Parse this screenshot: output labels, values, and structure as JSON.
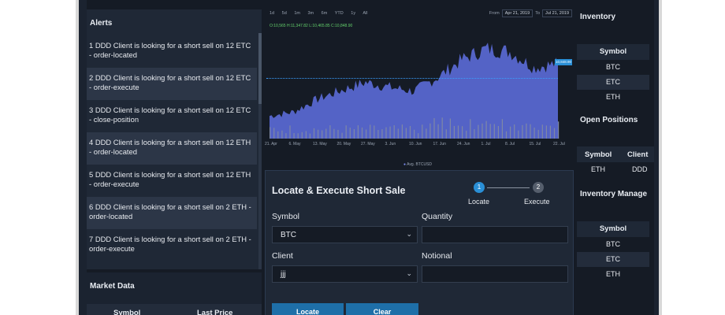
{
  "alerts": {
    "title": "Alerts",
    "items": [
      "1 DDD Client is looking for a short sell on 12 ETC - order-located",
      "2 DDD Client is looking for a short sell on 12 ETC - order-execute",
      "3 DDD Client is looking for a short sell on 12 ETC - close-position",
      "4 DDD Client is looking for a short sell on 12 ETH - order-located",
      "5 DDD Client is looking for a short sell on 12 ETH - order-execute",
      "6 DDD Client is looking for a short sell on 2 ETH - order-located",
      "7 DDD Client is looking for a short sell on 2 ETH - order-execute"
    ]
  },
  "market_data": {
    "title": "Market Data",
    "columns": [
      "Symbol",
      "Last Price"
    ]
  },
  "chart": {
    "ranges": [
      "1d",
      "5d",
      "1m",
      "3m",
      "6m",
      "YTD",
      "1y",
      "All"
    ],
    "from_label": "From",
    "from_date": "Apr 21, 2019",
    "to_label": "To",
    "to_date": "Jul 21, 2019",
    "ohlc": "O:10,565 H:11,347.82 L:10,465.85 C:10,848.90",
    "price_tag": "10,848.90",
    "x_ticks": [
      "21. Apr",
      "6. May",
      "13. May",
      "20. May",
      "27. May",
      "3. Jun",
      "10. Jun",
      "17. Jun",
      "24. Jun",
      "1. Jul",
      "8. Jul",
      "15. Jul",
      "22. Jul"
    ],
    "legend": "Avg. BTCUSD",
    "accent": "#5b6bd8",
    "volume_color": "#7e88a6"
  },
  "chart_data": {
    "type": "area",
    "x": [
      "21. Apr",
      "6. May",
      "13. May",
      "20. May",
      "27. May",
      "3. Jun",
      "10. Jun",
      "17. Jun",
      "24. Jun",
      "1. Jul",
      "8. Jul",
      "15. Jul",
      "22. Jul"
    ],
    "series": [
      {
        "name": "Avg. BTCUSD",
        "values": [
          5300,
          5700,
          7000,
          7900,
          8700,
          8200,
          7800,
          9200,
          11000,
          12100,
          11800,
          10200,
          10600
        ]
      }
    ],
    "grid": false,
    "legend": "bottom-center"
  },
  "locate_form": {
    "title": "Locate & Execute Short Sale",
    "steps": [
      {
        "number": "1",
        "label": "Locate"
      },
      {
        "number": "2",
        "label": "Execute"
      }
    ],
    "symbol_label": "Symbol",
    "symbol_value": "BTC",
    "quantity_label": "Quantity",
    "quantity_value": "",
    "client_label": "Client",
    "client_value": "jjj",
    "notional_label": "Notional",
    "notional_value": "",
    "locate_button": "Locate",
    "clear_button": "Clear"
  },
  "inventory": {
    "title": "Inventory",
    "column": "Symbol",
    "rows": [
      "BTC",
      "ETC",
      "ETH"
    ]
  },
  "open_positions": {
    "title": "Open Positions",
    "columns": [
      "Symbol",
      "Client"
    ],
    "rows": [
      [
        "ETH",
        "DDD"
      ]
    ]
  },
  "inventory_management": {
    "title": "Inventory Manage",
    "column": "Symbol",
    "rows": [
      "BTC",
      "ETC",
      "ETH"
    ]
  }
}
